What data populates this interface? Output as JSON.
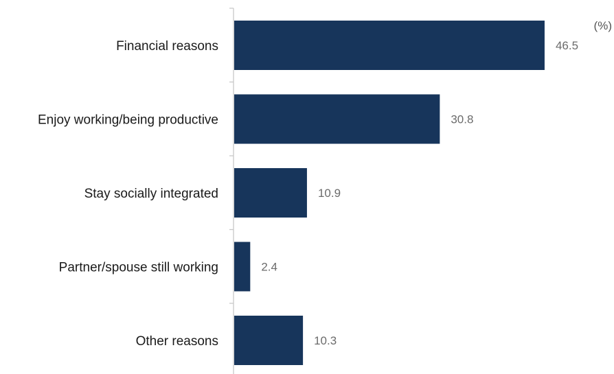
{
  "chart_data": {
    "type": "bar",
    "orientation": "horizontal",
    "unit": "(%)",
    "categories": [
      "Financial reasons",
      "Enjoy working/being productive",
      "Stay socially integrated",
      "Partner/spouse still working",
      "Other reasons"
    ],
    "values": [
      46.5,
      30.8,
      10.9,
      2.4,
      10.3
    ],
    "value_labels": [
      "46.5",
      "30.8",
      "10.9",
      "2.4",
      "10.3"
    ],
    "xlim": [
      0,
      57
    ],
    "grid": false,
    "legend": "none",
    "colors": {
      "bar": "#17355b",
      "axis": "#c8c8c8",
      "value_text": "#6b6b6b",
      "category_text": "#1a1a1a"
    }
  }
}
